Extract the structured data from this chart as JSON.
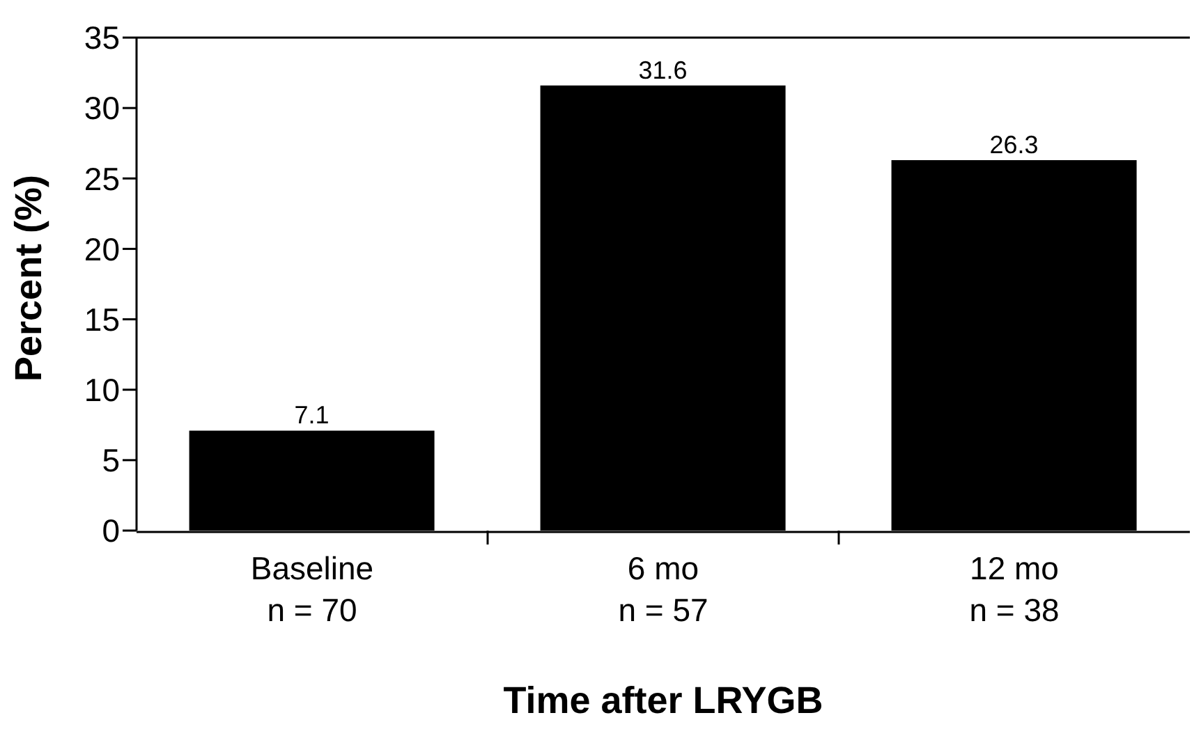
{
  "chart_data": {
    "type": "bar",
    "xlabel": "Time after LRYGB",
    "ylabel": "Percent (%)",
    "categories": [
      "Baseline\nn = 70",
      "6 mo\nn = 57",
      "12 mo\nn = 38"
    ],
    "values": [
      7.1,
      31.6,
      26.3
    ],
    "color": "#000000",
    "ylim": [
      0,
      35
    ],
    "yticks": [
      0,
      5,
      10,
      15,
      20,
      25,
      30,
      35
    ],
    "grid": false,
    "legend": false,
    "data_labels": true
  }
}
